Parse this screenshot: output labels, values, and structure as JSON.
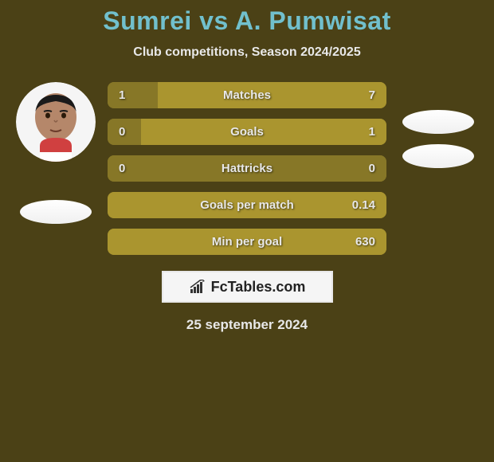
{
  "background_color": "#4b4116",
  "title": {
    "text": "Sumrei vs A. Pumwisat",
    "color": "#71c0cd",
    "font_size": 32
  },
  "subtitle": {
    "text": "Club competitions, Season 2024/2025",
    "color": "#e8e8e8",
    "font_size": 16
  },
  "player_left": {
    "avatar_bg": "#f5f5f5",
    "flag_bg": "#ffffff"
  },
  "player_right": {
    "avatar_bg": "transparent",
    "flag_bg": "#ffffff"
  },
  "stat_bar_style": {
    "left_fill_color": "#877727",
    "right_fill_color": "#aa952f",
    "text_color": "#e8e8e8",
    "label_text_shadow": "1px 1px 2px rgba(0,0,0,0.6)"
  },
  "stats": [
    {
      "label": "Matches",
      "left_val": "1",
      "right_val": "7",
      "left_pct": 18,
      "right_pct": 82
    },
    {
      "label": "Goals",
      "left_val": "0",
      "right_val": "1",
      "left_pct": 12,
      "right_pct": 88
    },
    {
      "label": "Hattricks",
      "left_val": "0",
      "right_val": "0",
      "left_pct": 100,
      "right_pct": 0
    },
    {
      "label": "Goals per match",
      "left_val": "",
      "right_val": "0.14",
      "left_pct": 0,
      "right_pct": 100
    },
    {
      "label": "Min per goal",
      "left_val": "",
      "right_val": "630",
      "left_pct": 0,
      "right_pct": 100
    }
  ],
  "logo": {
    "text": "FcTables.com",
    "border_color": "#e8e8e8",
    "bg_color": "#f5f5f5"
  },
  "date": {
    "text": "25 september 2024",
    "color": "#e8e8e8"
  }
}
